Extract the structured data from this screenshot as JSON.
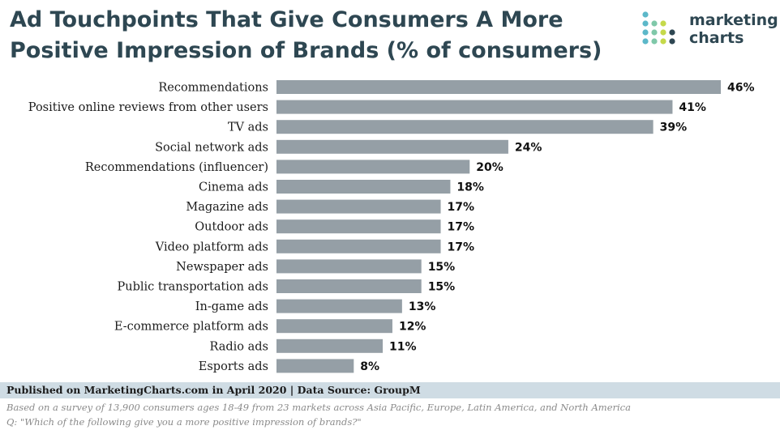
{
  "chart_data": {
    "type": "bar",
    "orientation": "horizontal",
    "title": "Ad Touchpoints That Give Consumers A More Positive Impression of Brands (% of consumers)",
    "categories": [
      "Recommendations",
      "Positive online reviews from other users",
      "TV ads",
      "Social network ads",
      "Recommendations (influencer)",
      "Cinema ads",
      "Magazine ads",
      "Outdoor ads",
      "Video platform ads",
      "Newspaper ads",
      "Public transportation ads",
      "In-game ads",
      "E-commerce platform ads",
      "Radio ads",
      "Esports ads"
    ],
    "values": [
      46,
      41,
      39,
      24,
      20,
      18,
      17,
      17,
      17,
      15,
      15,
      13,
      12,
      11,
      8
    ],
    "value_labels": [
      "46%",
      "41%",
      "39%",
      "24%",
      "20%",
      "18%",
      "17%",
      "17%",
      "17%",
      "15%",
      "15%",
      "13%",
      "12%",
      "11%",
      "8%"
    ],
    "xlim": [
      0,
      46
    ],
    "grid": false,
    "bar_color": "#959fa6"
  },
  "logo": {
    "line1": "marketing",
    "line2": "charts",
    "dot_colors": [
      "#5cb8c9",
      "#7fc8a9",
      "#c5d94a",
      "#2e4752"
    ]
  },
  "footer": {
    "published": "Published on MarketingCharts.com in April 2020 | Data Source: GroupM",
    "survey": "Based on a survey of 13,900 consumers ages 18-49 from 23 markets across Asia Pacific, Europe, Latin America, and North America",
    "question": "Q: \"Which of the following give you a more positive impression of brands?\""
  }
}
